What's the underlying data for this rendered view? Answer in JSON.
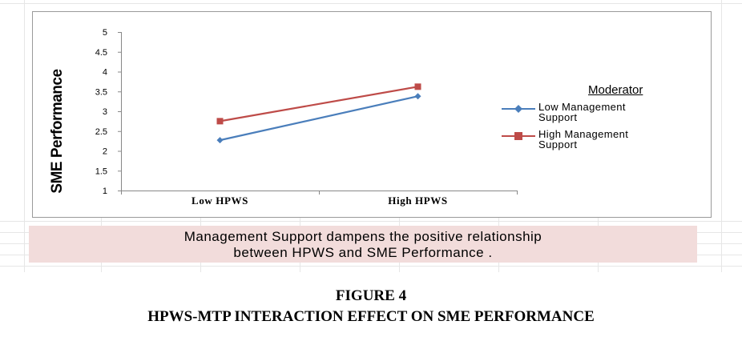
{
  "chart_data": {
    "type": "line",
    "categories": [
      "Low HPWS",
      "High HPWS"
    ],
    "series": [
      {
        "name": "Low Management Support",
        "values": [
          2.27,
          3.38
        ],
        "color": "#4a7ebb",
        "marker": "diamond"
      },
      {
        "name": "High Management Support",
        "values": [
          2.75,
          3.62
        ],
        "color": "#be4b48",
        "marker": "square"
      }
    ],
    "title": "",
    "xlabel": "",
    "ylabel": "SME Performance",
    "ylim": [
      1,
      5
    ],
    "yticks": [
      "1",
      "1.5",
      "2",
      "2.5",
      "3",
      "3.5",
      "4",
      "4.5",
      "5"
    ],
    "grid": false,
    "legend": {
      "title": "Moderator",
      "placement": "right"
    }
  },
  "legend_labels": {
    "low_line1": "Low Management",
    "low_line2": "Support",
    "high_line1": "High Management",
    "high_line2": "Support"
  },
  "caption": {
    "line1": "Management Support dampens the positive relationship",
    "line2": "between HPWS and SME Performance ."
  },
  "figure": {
    "number": "FIGURE 4",
    "title": "HPWS-MTP INTERACTION EFFECT ON SME PERFORMANCE"
  }
}
